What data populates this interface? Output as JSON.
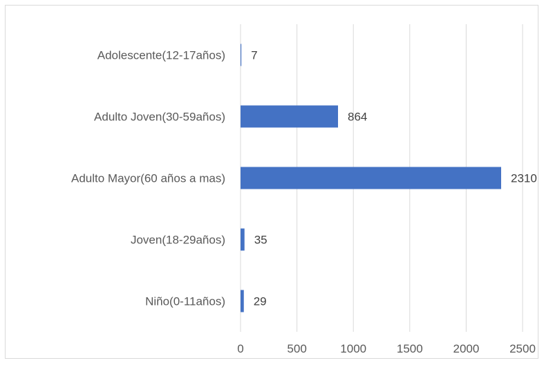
{
  "chart_data": {
    "type": "bar",
    "orientation": "horizontal",
    "title": "",
    "xlabel": "",
    "ylabel": "",
    "categories": [
      "Adolescente(12-17años)",
      "Adulto Joven(30-59años)",
      "Adulto Mayor(60 años a mas)",
      "Joven(18-29años)",
      "Niño(0-11años)"
    ],
    "values": [
      7,
      864,
      2310,
      35,
      29
    ],
    "data_labels": [
      "7",
      "864",
      "2310",
      "35",
      "29"
    ],
    "xlim": [
      0,
      2500
    ],
    "x_ticks": [
      0,
      500,
      1000,
      1500,
      2000,
      2500
    ],
    "x_tick_labels": [
      "0",
      "500",
      "1000",
      "1500",
      "2000",
      "2500"
    ],
    "grid": "vertical",
    "legend": "none",
    "colors": {
      "bar": "#4472c4",
      "grid": "#d9d9d9",
      "text": "#595959",
      "border": "#d9d9d9"
    }
  }
}
